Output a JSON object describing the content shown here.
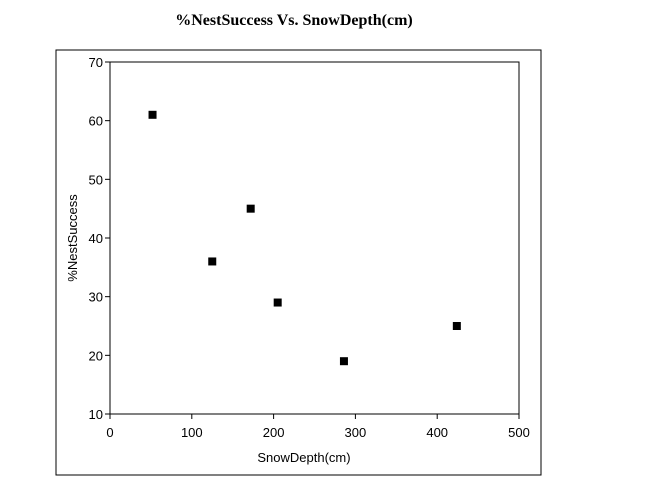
{
  "chart_data": {
    "type": "scatter",
    "title": "%NestSuccess  Vs.  SnowDepth(cm)",
    "xlabel": "SnowDepth(cm)",
    "ylabel": "%NestSuccess",
    "xlim": [
      0,
      500
    ],
    "ylim": [
      10,
      70
    ],
    "xticks": [
      0,
      100,
      200,
      300,
      400,
      500
    ],
    "yticks": [
      10,
      20,
      30,
      40,
      50,
      60,
      70
    ],
    "grid": false,
    "legend": "none",
    "marker": "square",
    "marker_color": "#000000",
    "points": [
      {
        "x": 52,
        "y": 61
      },
      {
        "x": 125,
        "y": 36
      },
      {
        "x": 172,
        "y": 45
      },
      {
        "x": 205,
        "y": 29
      },
      {
        "x": 286,
        "y": 19
      },
      {
        "x": 424,
        "y": 25
      }
    ]
  }
}
